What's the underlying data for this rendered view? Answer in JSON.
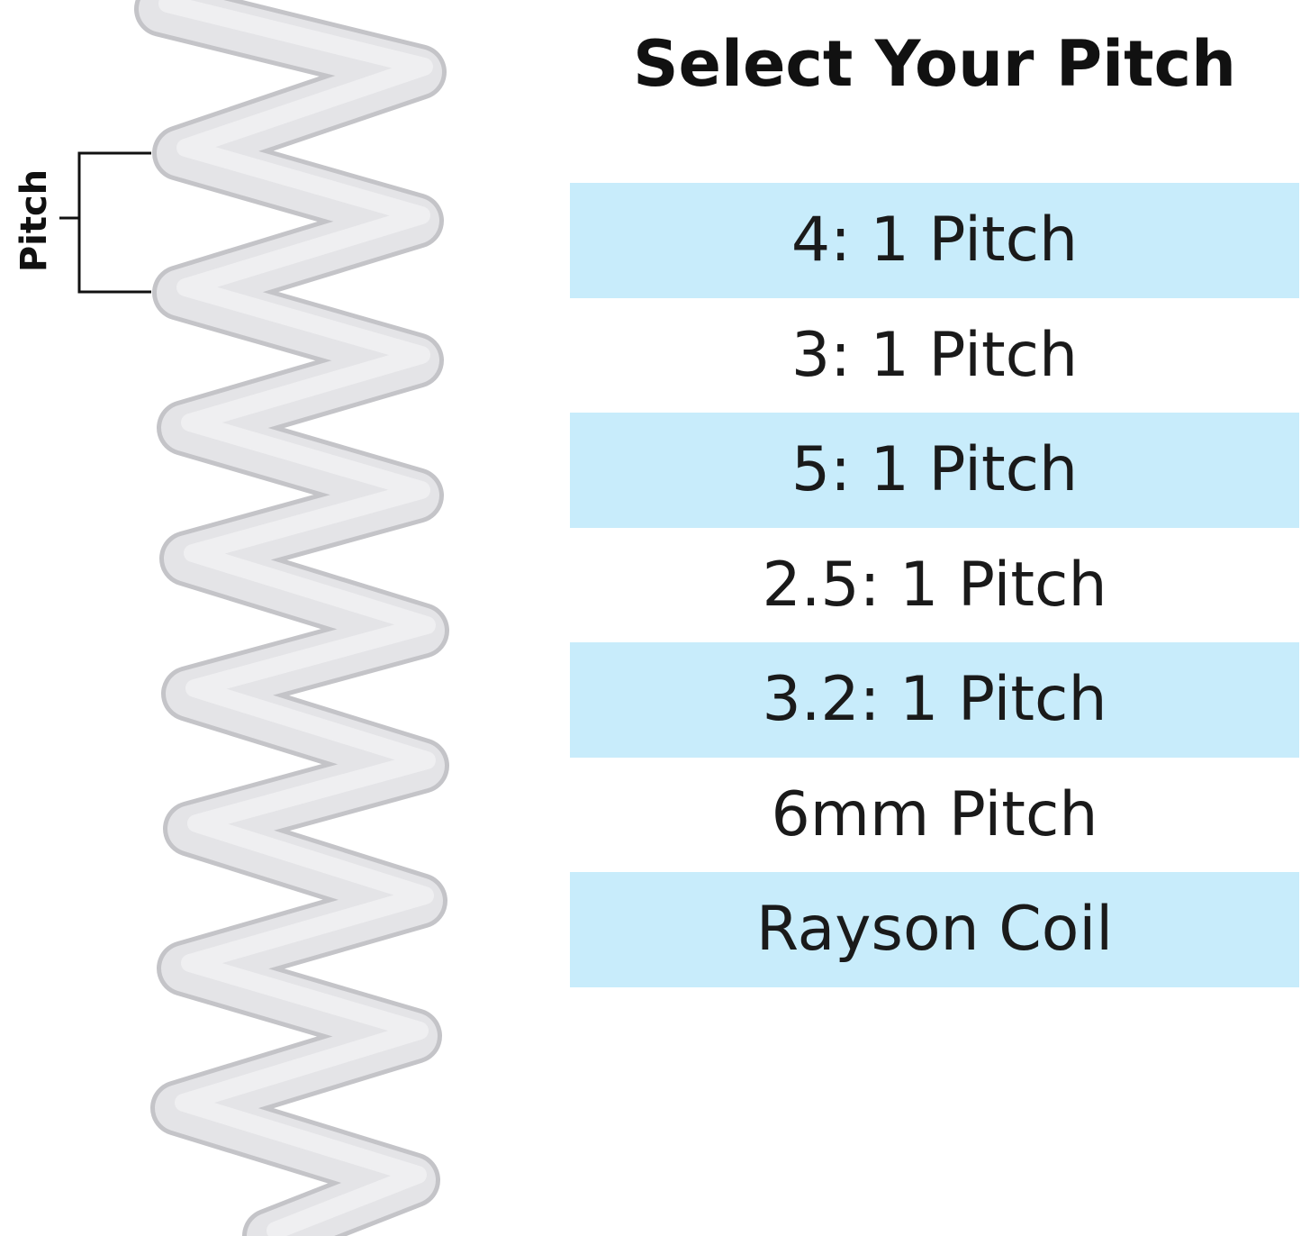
{
  "diagram_label": "Pitch",
  "title": "Select Your Pitch",
  "options": [
    {
      "label": "4: 1 Pitch",
      "shaded": true
    },
    {
      "label": "3: 1 Pitch",
      "shaded": false
    },
    {
      "label": "5: 1 Pitch",
      "shaded": true
    },
    {
      "label": "2.5: 1 Pitch",
      "shaded": false
    },
    {
      "label": "3.2: 1 Pitch",
      "shaded": true
    },
    {
      "label": "6mm Pitch",
      "shaded": false
    },
    {
      "label": "Rayson Coil",
      "shaded": true
    }
  ],
  "colors": {
    "highlight": "#c8ecfb",
    "coil": "#eaeaec",
    "text": "#1a1a1a"
  }
}
